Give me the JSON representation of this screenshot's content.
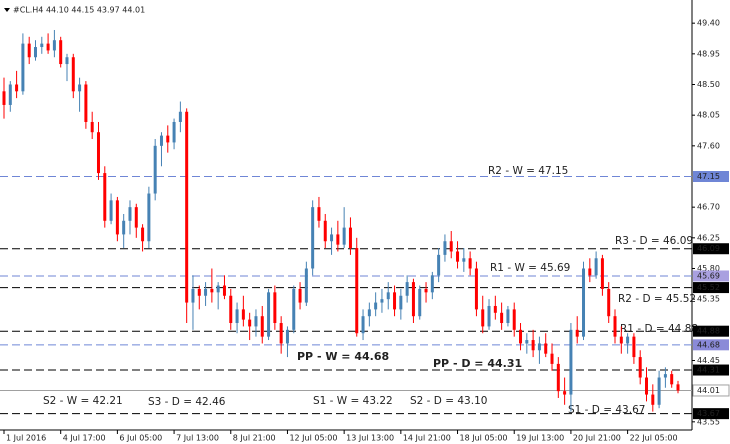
{
  "chart_data": {
    "type": "candlestick",
    "title": "#CL.H4 44.10 44.15 43.97 44.01",
    "up_color": "#4682b4",
    "down_color": "#ff0000",
    "ylim": [
      43.43,
      49.74
    ],
    "yticks": [
      {
        "value": 49.4,
        "label": "49.40"
      },
      48.95,
      {
        "value": 48.5,
        "label": "48.50"
      },
      48.05,
      {
        "value": 47.6,
        "label": "47.60"
      },
      {
        "value": 46.7,
        "label": "46.70"
      },
      46.25,
      {
        "value": 45.8,
        "label": "45.80"
      },
      45.35,
      44.45,
      43.55
    ],
    "xticks": [
      {
        "value": 0,
        "label": "1 Jul 2016"
      },
      {
        "value": 9,
        "label": "4 Jul 17:00"
      },
      {
        "value": 18,
        "label": "6 Jul 05:00"
      },
      {
        "value": 27,
        "label": "7 Jul 13:00"
      },
      {
        "value": 36,
        "label": "8 Jul 21:00"
      },
      {
        "value": 45,
        "label": "12 Jul 05:00"
      },
      {
        "value": 54,
        "label": "13 Jul 13:00"
      },
      {
        "value": 63,
        "label": "14 Jul 21:00"
      },
      {
        "value": 72,
        "label": "18 Jul 05:00"
      },
      {
        "value": 81,
        "label": "19 Jul 13:00"
      },
      {
        "value": 90,
        "label": "20 Jul 21:00"
      },
      {
        "value": 99,
        "label": "22 Jul 05:00"
      }
    ],
    "ohlc": [
      [
        48.4,
        48.6,
        48.0,
        48.2
      ],
      [
        48.2,
        48.55,
        48.1,
        48.5
      ],
      [
        48.5,
        48.7,
        48.3,
        48.4
      ],
      [
        48.4,
        49.25,
        48.35,
        49.1
      ],
      [
        49.1,
        49.2,
        48.8,
        48.9
      ],
      [
        48.9,
        49.15,
        48.85,
        49.05
      ],
      [
        49.05,
        49.2,
        48.95,
        49.1
      ],
      [
        49.1,
        49.25,
        48.95,
        49.0
      ],
      [
        49.0,
        49.3,
        48.9,
        49.15
      ],
      [
        49.15,
        49.2,
        48.75,
        48.8
      ],
      [
        48.8,
        48.95,
        48.55,
        48.9
      ],
      [
        48.9,
        48.95,
        48.3,
        48.4
      ],
      [
        48.4,
        48.6,
        48.1,
        48.5
      ],
      [
        48.5,
        48.55,
        47.85,
        47.95
      ],
      [
        47.95,
        48.1,
        47.7,
        47.8
      ],
      [
        47.8,
        47.95,
        47.1,
        47.2
      ],
      [
        47.2,
        47.3,
        46.4,
        46.5
      ],
      [
        46.5,
        46.9,
        46.45,
        46.8
      ],
      [
        46.8,
        46.85,
        46.2,
        46.3
      ],
      [
        46.3,
        46.6,
        46.1,
        46.5
      ],
      [
        46.5,
        46.8,
        46.3,
        46.7
      ],
      [
        46.7,
        46.75,
        46.25,
        46.4
      ],
      [
        46.4,
        46.45,
        46.05,
        46.2
      ],
      [
        46.2,
        47.0,
        46.1,
        46.9
      ],
      [
        46.9,
        47.7,
        46.8,
        47.6
      ],
      [
        47.6,
        47.8,
        47.3,
        47.75
      ],
      [
        47.75,
        47.9,
        47.5,
        47.65
      ],
      [
        47.65,
        48.0,
        47.55,
        47.95
      ],
      [
        47.95,
        48.25,
        47.8,
        48.1
      ],
      [
        48.1,
        48.15,
        45.0,
        45.3
      ],
      [
        45.3,
        45.7,
        44.9,
        45.5
      ],
      [
        45.5,
        45.55,
        45.2,
        45.4
      ],
      [
        45.4,
        45.6,
        45.25,
        45.5
      ],
      [
        45.5,
        45.8,
        45.3,
        45.45
      ],
      [
        45.45,
        45.6,
        45.2,
        45.55
      ],
      [
        45.55,
        45.7,
        45.35,
        45.4
      ],
      [
        45.4,
        45.5,
        44.9,
        45.0
      ],
      [
        45.0,
        45.3,
        44.85,
        45.2
      ],
      [
        45.2,
        45.4,
        44.95,
        45.05
      ],
      [
        45.05,
        45.15,
        44.75,
        44.95
      ],
      [
        44.95,
        45.2,
        44.8,
        45.1
      ],
      [
        45.1,
        45.25,
        44.7,
        44.8
      ],
      [
        44.8,
        45.5,
        44.75,
        45.45
      ],
      [
        45.45,
        45.55,
        44.9,
        45.0
      ],
      [
        45.0,
        45.1,
        44.55,
        44.7
      ],
      [
        44.7,
        44.95,
        44.5,
        44.9
      ],
      [
        44.9,
        45.55,
        44.85,
        45.5
      ],
      [
        45.5,
        45.6,
        45.2,
        45.3
      ],
      [
        45.3,
        45.9,
        45.25,
        45.8
      ],
      [
        45.8,
        46.8,
        45.7,
        46.7
      ],
      [
        46.7,
        46.85,
        46.4,
        46.5
      ],
      [
        46.5,
        46.6,
        46.1,
        46.2
      ],
      [
        46.2,
        46.4,
        46.0,
        46.3
      ],
      [
        46.3,
        46.5,
        46.05,
        46.15
      ],
      [
        46.15,
        46.7,
        46.1,
        46.4
      ],
      [
        46.4,
        46.55,
        46.0,
        46.1
      ],
      [
        46.1,
        46.25,
        44.8,
        44.85
      ],
      [
        44.85,
        45.2,
        44.75,
        45.1
      ],
      [
        45.1,
        45.3,
        44.95,
        45.2
      ],
      [
        45.2,
        45.45,
        45.1,
        45.3
      ],
      [
        45.3,
        45.5,
        45.15,
        45.35
      ],
      [
        45.35,
        45.6,
        45.2,
        45.45
      ],
      [
        45.45,
        45.55,
        45.1,
        45.2
      ],
      [
        45.2,
        45.5,
        45.05,
        45.4
      ],
      [
        45.4,
        45.7,
        45.3,
        45.6
      ],
      [
        45.6,
        45.65,
        45.0,
        45.1
      ],
      [
        45.1,
        45.55,
        45.05,
        45.5
      ],
      [
        45.5,
        45.6,
        45.3,
        45.45
      ],
      [
        45.45,
        45.75,
        45.35,
        45.7
      ],
      [
        45.7,
        46.1,
        45.6,
        46.0
      ],
      [
        46.0,
        46.3,
        45.9,
        46.2
      ],
      [
        46.2,
        46.35,
        45.95,
        46.05
      ],
      [
        46.05,
        46.2,
        45.8,
        45.9
      ],
      [
        45.9,
        46.1,
        45.75,
        45.95
      ],
      [
        45.95,
        46.05,
        45.7,
        45.8
      ],
      [
        45.8,
        45.9,
        45.1,
        45.2
      ],
      [
        45.2,
        45.4,
        44.85,
        44.95
      ],
      [
        44.95,
        45.35,
        44.9,
        45.25
      ],
      [
        45.25,
        45.4,
        45.05,
        45.15
      ],
      [
        45.15,
        45.3,
        44.9,
        45.0
      ],
      [
        45.0,
        45.25,
        44.95,
        45.2
      ],
      [
        45.2,
        45.3,
        44.8,
        44.9
      ],
      [
        44.9,
        45.0,
        44.6,
        44.7
      ],
      [
        44.7,
        44.85,
        44.55,
        44.75
      ],
      [
        44.75,
        44.9,
        44.5,
        44.6
      ],
      [
        44.6,
        44.8,
        44.4,
        44.7
      ],
      [
        44.7,
        44.85,
        44.5,
        44.55
      ],
      [
        44.55,
        44.7,
        44.3,
        44.4
      ],
      [
        44.4,
        44.5,
        43.9,
        44.0
      ],
      [
        44.0,
        44.2,
        43.8,
        43.95
      ],
      [
        43.95,
        45.0,
        43.7,
        44.9
      ],
      [
        44.9,
        45.1,
        44.7,
        44.8
      ],
      [
        44.8,
        45.9,
        44.75,
        45.8
      ],
      [
        45.8,
        45.95,
        45.6,
        45.7
      ],
      [
        45.7,
        46.05,
        45.65,
        45.95
      ],
      [
        45.95,
        46.0,
        45.4,
        45.5
      ],
      [
        45.5,
        45.6,
        45.0,
        45.1
      ],
      [
        45.1,
        45.2,
        44.7,
        44.8
      ],
      [
        44.8,
        44.95,
        44.55,
        44.7
      ],
      [
        44.7,
        44.85,
        44.55,
        44.8
      ],
      [
        44.8,
        44.85,
        44.4,
        44.5
      ],
      [
        44.5,
        44.6,
        44.1,
        44.2
      ],
      [
        44.2,
        44.35,
        43.85,
        43.95
      ],
      [
        43.95,
        44.1,
        43.7,
        43.8
      ],
      [
        43.8,
        44.3,
        43.75,
        44.2
      ],
      [
        44.2,
        44.35,
        44.05,
        44.25
      ],
      [
        44.25,
        44.3,
        44.05,
        44.1
      ],
      [
        44.1,
        44.15,
        43.97,
        44.01
      ]
    ],
    "last_price": {
      "value": 44.01,
      "color": "#a0a0a0"
    },
    "levels": [
      {
        "text": "R2 - W = 47.15",
        "value": 47.15,
        "color": "#6f86d6",
        "text_color": "#8a8ad8",
        "box_color": "#6f86d6"
      },
      {
        "text": "R3 - D = 46.09",
        "value": 46.09,
        "color": "#000000",
        "text_color": "#e02020",
        "box_color": "#000000"
      },
      {
        "text": "R1 - W = 45.69",
        "value": 45.69,
        "color": "#6f86d6",
        "text_color": "#8a8ad8",
        "box_color": "#a9a0e0"
      },
      {
        "text": "R2 - D = 45.52",
        "value": 45.52,
        "color": "#000000",
        "text_color": "#e02020",
        "box_color": "#000000"
      },
      {
        "text": "R1 - D = 44.88",
        "value": 44.88,
        "color": "#000000",
        "text_color": "#e02020",
        "box_color": "#000000"
      },
      {
        "text": "PP - W = 44.68",
        "value": 44.68,
        "color": "#6f86d6",
        "text_color": "#3c3cd0",
        "box_color": "#8a8ad8",
        "bold": true
      },
      {
        "text": "PP - D = 44.31",
        "value": 44.31,
        "color": "#000000",
        "text_color": "#3c3cd0",
        "box_color": "#000000",
        "bold": true
      },
      {
        "text": "S2 - W = 42.21",
        "value": 42.21,
        "color": "#6f86d6",
        "text_color": "#8a8ad8",
        "box_color": "#6f86d6"
      },
      {
        "text": "S3 - D = 42.46",
        "value": 42.46,
        "color": "#000000",
        "text_color": "#e02020",
        "box_color": "#000000"
      },
      {
        "text": "S1 - W = 43.22",
        "value": 43.22,
        "color": "#6f86d6",
        "text_color": "#8a8ad8",
        "box_color": "#6f86d6"
      },
      {
        "text": "S2 - D = 43.10",
        "value": 43.1,
        "color": "#000000",
        "text_color": "#e02020",
        "box_color": "#000000"
      },
      {
        "text": "S1 - D = 43.67",
        "value": 43.67,
        "color": "#000000",
        "text_color": "#e02020",
        "box_color": "#000000"
      }
    ]
  }
}
